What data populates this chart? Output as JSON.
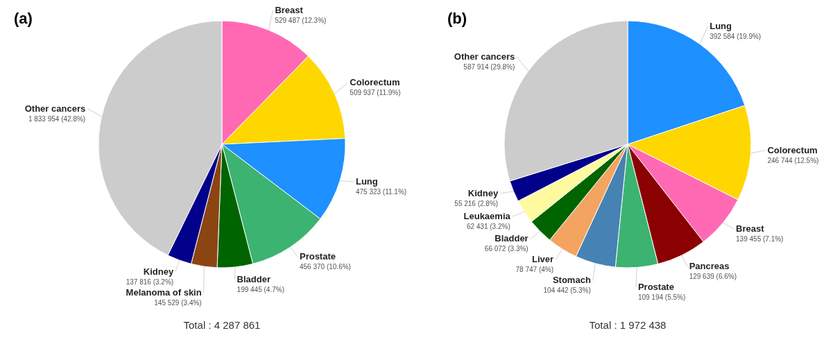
{
  "chart_data": [
    {
      "type": "pie",
      "title": "(a)",
      "categories": [
        "Breast",
        "Colorectum",
        "Lung",
        "Prostate",
        "Bladder",
        "Melanoma of skin",
        "Kidney",
        "Other cancers"
      ],
      "values": [
        529487,
        509937,
        475323,
        456370,
        199445,
        145529,
        137816,
        1833954
      ],
      "colors": [
        "#ff69b4",
        "#ffd700",
        "#1e90ff",
        "#3cb371",
        "#006400",
        "#8b4513",
        "#00008b",
        "#cccccc"
      ],
      "value_labels": [
        "529 487 (12.3%)",
        "509 937 (11.9%)",
        "475 323 (11.1%)",
        "456 370 (10.6%)",
        "199 445 (4.7%)",
        "145 529 (3.4%)",
        "137 816 (3.2%)",
        "1 833 954 (42.8%)"
      ],
      "annotations": [
        "Total : 4 287 861"
      ]
    },
    {
      "type": "pie",
      "title": "(b)",
      "categories": [
        "Lung",
        "Colorectum",
        "Breast",
        "Pancreas",
        "Prostate",
        "Stomach",
        "Liver",
        "Bladder",
        "Leukaemia",
        "Kidney",
        "Other cancers"
      ],
      "values": [
        392584,
        246744,
        139455,
        129639,
        109194,
        104442,
        78747,
        66072,
        62431,
        55216,
        587914
      ],
      "colors": [
        "#1e90ff",
        "#ffd700",
        "#ff69b4",
        "#8b0000",
        "#3cb371",
        "#4682b4",
        "#f4a460",
        "#006400",
        "#fffaa0",
        "#00008b",
        "#cccccc"
      ],
      "value_labels": [
        "392 584 (19.9%)",
        "246 744 (12.5%)",
        "139 455 (7.1%)",
        "129 639 (6.6%)",
        "109 194 (5.5%)",
        "104 442 (5.3%)",
        "78 747 (4%)",
        "66 072 (3.3%)",
        "62 431 (3.2%)",
        "55 216 (2.8%)",
        "587 914 (29.8%)"
      ],
      "annotations": [
        "Total : 1 972 438"
      ]
    }
  ]
}
